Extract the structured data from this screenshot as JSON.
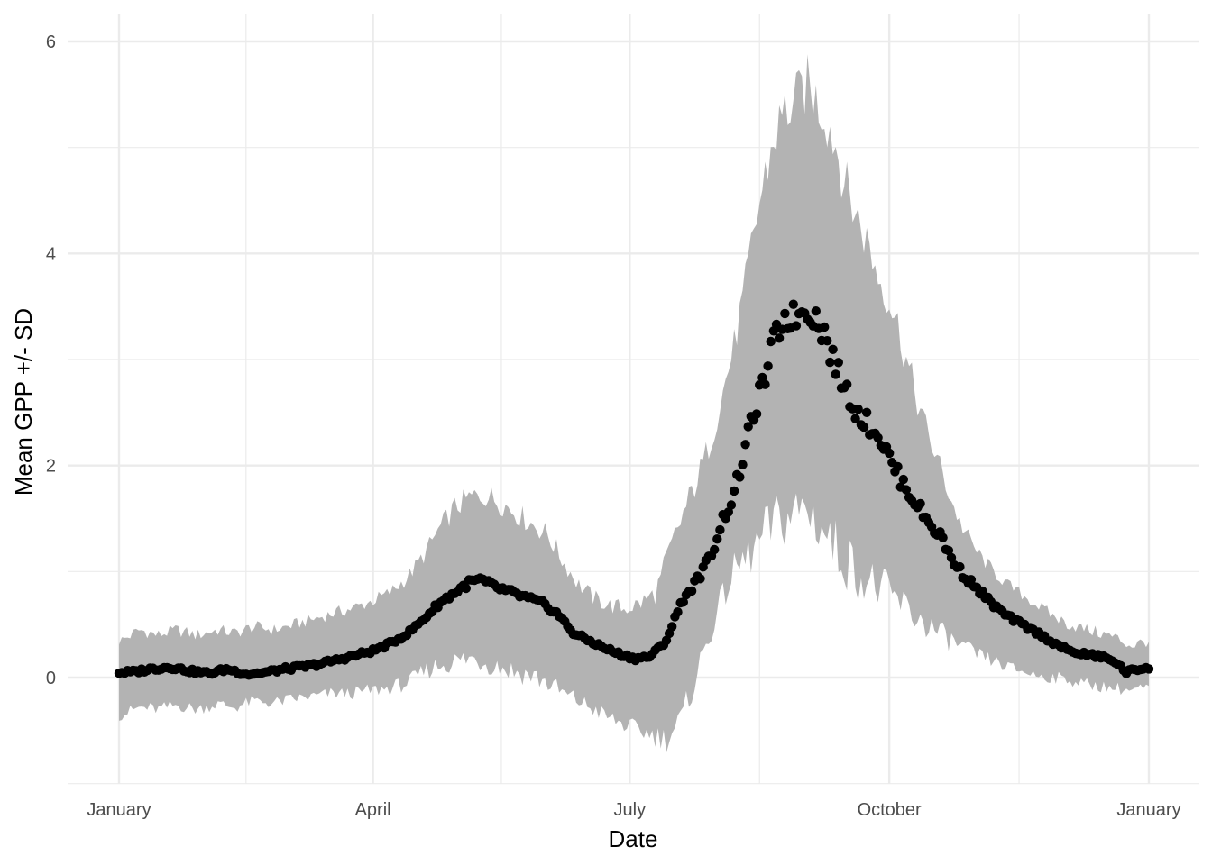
{
  "chart_data": {
    "type": "scatter",
    "xlabel": "Date",
    "ylabel": "Mean GPP +/- SD",
    "x_type": "date",
    "xlim": [
      "2021-01-01",
      "2021-12-31"
    ],
    "ylim": [
      -1.0,
      6.0
    ],
    "x_ticks": [
      {
        "date": "2021-01-01",
        "label": "January"
      },
      {
        "date": "2021-04-01",
        "label": "April"
      },
      {
        "date": "2021-07-01",
        "label": "July"
      },
      {
        "date": "2021-10-01",
        "label": "October"
      },
      {
        "date": "2022-01-01",
        "label": "January"
      }
    ],
    "y_ticks": [
      0,
      2,
      4,
      6
    ],
    "grid": true,
    "legend": "none",
    "colors": {
      "points": "#000000",
      "band": "#b3b3b3",
      "grid": "#ebebeb"
    },
    "series": [
      {
        "mean": [
          [
            5,
            0.05
          ],
          [
            12,
            0.08
          ],
          [
            20,
            0.1
          ],
          [
            28,
            0.06
          ],
          [
            35,
            0.04
          ],
          [
            42,
            0.08
          ],
          [
            50,
            0.03
          ],
          [
            57,
            0.05
          ],
          [
            64,
            0.08
          ],
          [
            71,
            0.1
          ],
          [
            78,
            0.13
          ],
          [
            85,
            0.17
          ],
          [
            90,
            0.2
          ],
          [
            98,
            0.25
          ],
          [
            105,
            0.32
          ],
          [
            112,
            0.42
          ],
          [
            118,
            0.55
          ],
          [
            124,
            0.7
          ],
          [
            130,
            0.8
          ],
          [
            136,
            0.9
          ],
          [
            140,
            0.92
          ],
          [
            146,
            0.85
          ],
          [
            152,
            0.8
          ],
          [
            158,
            0.75
          ],
          [
            164,
            0.7
          ],
          [
            170,
            0.6
          ],
          [
            176,
            0.42
          ],
          [
            182,
            0.35
          ],
          [
            188,
            0.28
          ],
          [
            194,
            0.22
          ],
          [
            200,
            0.18
          ],
          [
            206,
            0.2
          ],
          [
            212,
            0.35
          ],
          [
            218,
            0.72
          ],
          [
            222,
            0.85
          ],
          [
            226,
            1.0
          ],
          [
            230,
            1.2
          ],
          [
            234,
            1.5
          ],
          [
            238,
            1.7
          ],
          [
            242,
            2.1
          ],
          [
            246,
            2.5
          ],
          [
            250,
            2.8
          ],
          [
            254,
            3.2
          ],
          [
            258,
            3.4
          ],
          [
            262,
            3.4
          ],
          [
            266,
            3.5
          ],
          [
            270,
            3.4
          ],
          [
            274,
            3.2
          ],
          [
            278,
            2.9
          ],
          [
            282,
            2.7
          ],
          [
            286,
            2.5
          ],
          [
            290,
            2.4
          ],
          [
            294,
            2.3
          ],
          [
            298,
            2.1
          ],
          [
            302,
            1.9
          ],
          [
            306,
            1.75
          ],
          [
            310,
            1.6
          ],
          [
            314,
            1.45
          ],
          [
            318,
            1.35
          ],
          [
            322,
            1.15
          ],
          [
            326,
            1.0
          ],
          [
            332,
            0.85
          ],
          [
            338,
            0.7
          ],
          [
            344,
            0.58
          ],
          [
            350,
            0.5
          ],
          [
            356,
            0.42
          ],
          [
            362,
            0.33
          ],
          [
            368,
            0.25
          ],
          [
            374,
            0.22
          ],
          [
            380,
            0.2
          ],
          [
            386,
            0.15
          ],
          [
            390,
            0.05
          ],
          [
            395,
            0.08
          ],
          [
            399,
            0.1
          ]
        ],
        "upper": [
          [
            1,
            0.35
          ],
          [
            8,
            0.45
          ],
          [
            15,
            0.4
          ],
          [
            22,
            0.45
          ],
          [
            30,
            0.4
          ],
          [
            38,
            0.45
          ],
          [
            45,
            0.42
          ],
          [
            52,
            0.48
          ],
          [
            60,
            0.45
          ],
          [
            68,
            0.5
          ],
          [
            75,
            0.55
          ],
          [
            82,
            0.6
          ],
          [
            90,
            0.65
          ],
          [
            98,
            0.72
          ],
          [
            105,
            0.8
          ],
          [
            112,
            0.95
          ],
          [
            118,
            1.15
          ],
          [
            124,
            1.4
          ],
          [
            130,
            1.6
          ],
          [
            136,
            1.7
          ],
          [
            142,
            1.72
          ],
          [
            148,
            1.65
          ],
          [
            154,
            1.55
          ],
          [
            160,
            1.45
          ],
          [
            166,
            1.35
          ],
          [
            172,
            1.1
          ],
          [
            178,
            0.88
          ],
          [
            184,
            0.75
          ],
          [
            190,
            0.68
          ],
          [
            196,
            0.65
          ],
          [
            202,
            0.7
          ],
          [
            208,
            0.8
          ],
          [
            212,
            1.1
          ],
          [
            218,
            1.5
          ],
          [
            222,
            1.75
          ],
          [
            226,
            2.0
          ],
          [
            230,
            2.3
          ],
          [
            234,
            2.7
          ],
          [
            238,
            3.1
          ],
          [
            242,
            3.6
          ],
          [
            246,
            4.2
          ],
          [
            250,
            4.7
          ],
          [
            254,
            5.1
          ],
          [
            258,
            5.35
          ],
          [
            262,
            5.4
          ],
          [
            266,
            5.6
          ],
          [
            270,
            5.45
          ],
          [
            274,
            5.3
          ],
          [
            278,
            5.0
          ],
          [
            282,
            4.6
          ],
          [
            286,
            4.35
          ],
          [
            290,
            4.1
          ],
          [
            294,
            3.8
          ],
          [
            298,
            3.6
          ],
          [
            302,
            3.3
          ],
          [
            306,
            2.9
          ],
          [
            310,
            2.55
          ],
          [
            314,
            2.25
          ],
          [
            318,
            2.0
          ],
          [
            322,
            1.7
          ],
          [
            326,
            1.45
          ],
          [
            332,
            1.2
          ],
          [
            338,
            1.02
          ],
          [
            344,
            0.88
          ],
          [
            350,
            0.78
          ],
          [
            356,
            0.68
          ],
          [
            362,
            0.58
          ],
          [
            368,
            0.5
          ],
          [
            374,
            0.46
          ],
          [
            380,
            0.42
          ],
          [
            386,
            0.38
          ],
          [
            392,
            0.3
          ],
          [
            399,
            0.35
          ]
        ],
        "lower": [
          [
            1,
            -0.35
          ],
          [
            8,
            -0.28
          ],
          [
            15,
            -0.3
          ],
          [
            22,
            -0.26
          ],
          [
            30,
            -0.3
          ],
          [
            38,
            -0.25
          ],
          [
            45,
            -0.28
          ],
          [
            52,
            -0.22
          ],
          [
            60,
            -0.24
          ],
          [
            68,
            -0.2
          ],
          [
            75,
            -0.18
          ],
          [
            82,
            -0.15
          ],
          [
            90,
            -0.15
          ],
          [
            98,
            -0.12
          ],
          [
            105,
            -0.1
          ],
          [
            112,
            -0.05
          ],
          [
            118,
            0.05
          ],
          [
            124,
            0.12
          ],
          [
            130,
            0.15
          ],
          [
            136,
            0.18
          ],
          [
            142,
            0.15
          ],
          [
            148,
            0.1
          ],
          [
            154,
            0.05
          ],
          [
            160,
            0.02
          ],
          [
            166,
            -0.05
          ],
          [
            172,
            -0.15
          ],
          [
            178,
            -0.22
          ],
          [
            184,
            -0.3
          ],
          [
            190,
            -0.38
          ],
          [
            196,
            -0.45
          ],
          [
            202,
            -0.5
          ],
          [
            208,
            -0.55
          ],
          [
            212,
            -0.58
          ],
          [
            218,
            -0.4
          ],
          [
            222,
            -0.1
          ],
          [
            226,
            0.2
          ],
          [
            230,
            0.5
          ],
          [
            234,
            0.75
          ],
          [
            238,
            1.0
          ],
          [
            242,
            1.1
          ],
          [
            246,
            1.2
          ],
          [
            250,
            1.35
          ],
          [
            254,
            1.45
          ],
          [
            258,
            1.5
          ],
          [
            262,
            1.55
          ],
          [
            266,
            1.6
          ],
          [
            270,
            1.5
          ],
          [
            274,
            1.35
          ],
          [
            278,
            1.2
          ],
          [
            282,
            1.1
          ],
          [
            286,
            1.0
          ],
          [
            290,
            0.9
          ],
          [
            294,
            0.85
          ],
          [
            298,
            0.78
          ],
          [
            302,
            0.72
          ],
          [
            306,
            0.62
          ],
          [
            310,
            0.55
          ],
          [
            314,
            0.48
          ],
          [
            318,
            0.42
          ],
          [
            322,
            0.35
          ],
          [
            326,
            0.3
          ],
          [
            332,
            0.22
          ],
          [
            338,
            0.16
          ],
          [
            344,
            0.1
          ],
          [
            350,
            0.06
          ],
          [
            356,
            0.02
          ],
          [
            362,
            0.0
          ],
          [
            368,
            -0.02
          ],
          [
            374,
            -0.06
          ],
          [
            380,
            -0.08
          ],
          [
            386,
            -0.1
          ],
          [
            392,
            -0.12
          ],
          [
            399,
            -0.1
          ]
        ]
      }
    ]
  }
}
